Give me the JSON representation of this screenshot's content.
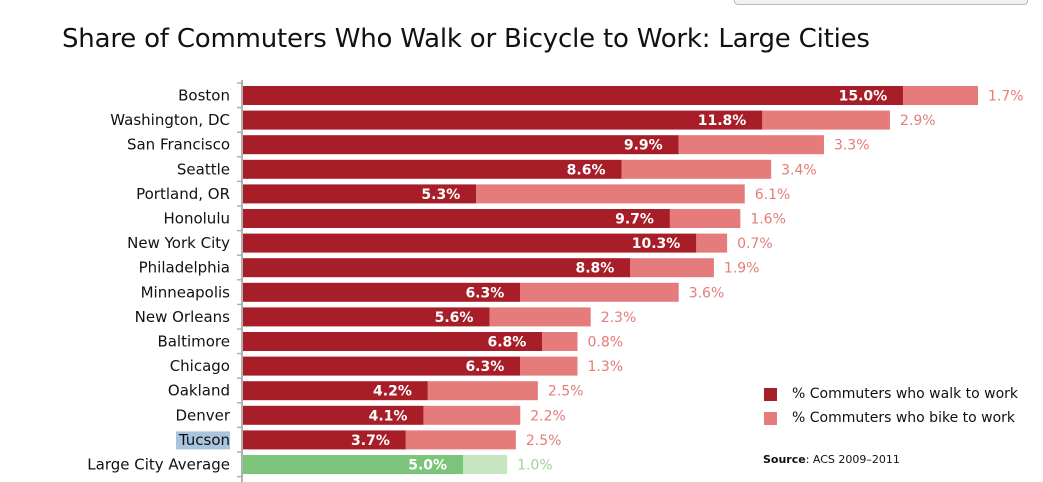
{
  "chart_data": {
    "type": "bar",
    "stacked": true,
    "orientation": "horizontal",
    "title": "Share of Commuters Who Walk or Bicycle to Work: Large Cities",
    "categories": [
      "Boston",
      "Washington, DC",
      "San Francisco",
      "Seattle",
      "Portland, OR",
      "Honolulu",
      "New York City",
      "Philadelphia",
      "Minneapolis",
      "New Orleans",
      "Baltimore",
      "Chicago",
      "Oakland",
      "Denver",
      "Tucson",
      "Large City Average"
    ],
    "series": [
      {
        "name": "% Commuters who walk to work",
        "values": [
          15.0,
          11.8,
          9.9,
          8.6,
          5.3,
          9.7,
          10.3,
          8.8,
          6.3,
          5.6,
          6.8,
          6.3,
          4.2,
          4.1,
          3.7,
          5.0
        ]
      },
      {
        "name": "% Commuters who bike to work",
        "values": [
          1.7,
          2.9,
          3.3,
          3.4,
          6.1,
          1.6,
          0.7,
          1.9,
          3.6,
          2.3,
          0.8,
          1.3,
          2.5,
          2.2,
          2.5,
          1.0
        ]
      }
    ],
    "value_labels": {
      "walk": [
        "15.0%",
        "11.8%",
        "9.9%",
        "8.6%",
        "5.3%",
        "9.7%",
        "10.3%",
        "8.8%",
        "6.3%",
        "5.6%",
        "6.8%",
        "6.3%",
        "4.2%",
        "4.1%",
        "3.7%",
        "5.0%"
      ],
      "bike": [
        "1.7%",
        "2.9%",
        "3.3%",
        "3.4%",
        "6.1%",
        "1.6%",
        "0.7%",
        "1.9%",
        "3.6%",
        "2.3%",
        "0.8%",
        "1.3%",
        "2.5%",
        "2.2%",
        "2.5%",
        "1.0%"
      ]
    },
    "highlighted_category": "Tucson",
    "average_category": "Large City Average",
    "xlim": [
      0,
      16.7
    ],
    "grid": false,
    "legend_position": "bottom-right",
    "colors": {
      "walk": "#a81e28",
      "bike": "#e57b7b",
      "avg_walk": "#7cc47a",
      "avg_bike": "#c5e5c0",
      "highlight_bg": "#a9c4dc",
      "avg_label": "#4caf4a"
    }
  },
  "legend": {
    "walk_label": "% Commuters who walk to work",
    "bike_label": "% Commuters who bike to work"
  },
  "source": {
    "label": "Source",
    "text": ": ACS 2009–2011"
  }
}
